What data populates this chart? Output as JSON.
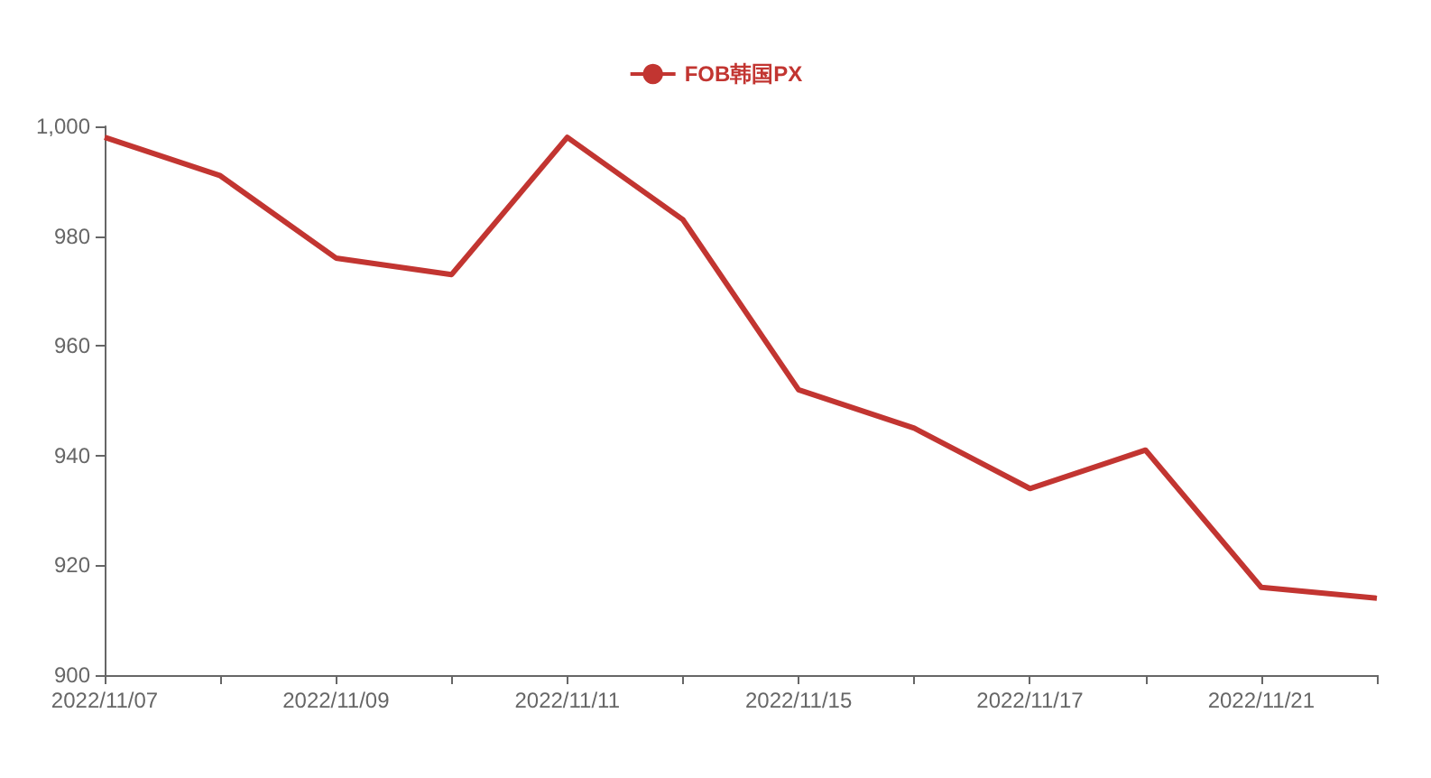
{
  "chart_data": {
    "type": "line",
    "categories": [
      "2022/11/07",
      null,
      "2022/11/09",
      null,
      "2022/11/11",
      null,
      "2022/11/15",
      null,
      "2022/11/17",
      null,
      "2022/11/21",
      null
    ],
    "series": [
      {
        "name": "FOB韩国PX",
        "color": "#c23531",
        "values": [
          998,
          991,
          976,
          973,
          998,
          983,
          952,
          945,
          934,
          941,
          916,
          914
        ]
      }
    ],
    "ylim": [
      900,
      1000
    ],
    "yticks": [
      900,
      920,
      940,
      960,
      980,
      {
        "value": 1000,
        "label": "1,000"
      }
    ],
    "grid": false,
    "legend": "top",
    "marker": "none",
    "line_style": "solid"
  }
}
